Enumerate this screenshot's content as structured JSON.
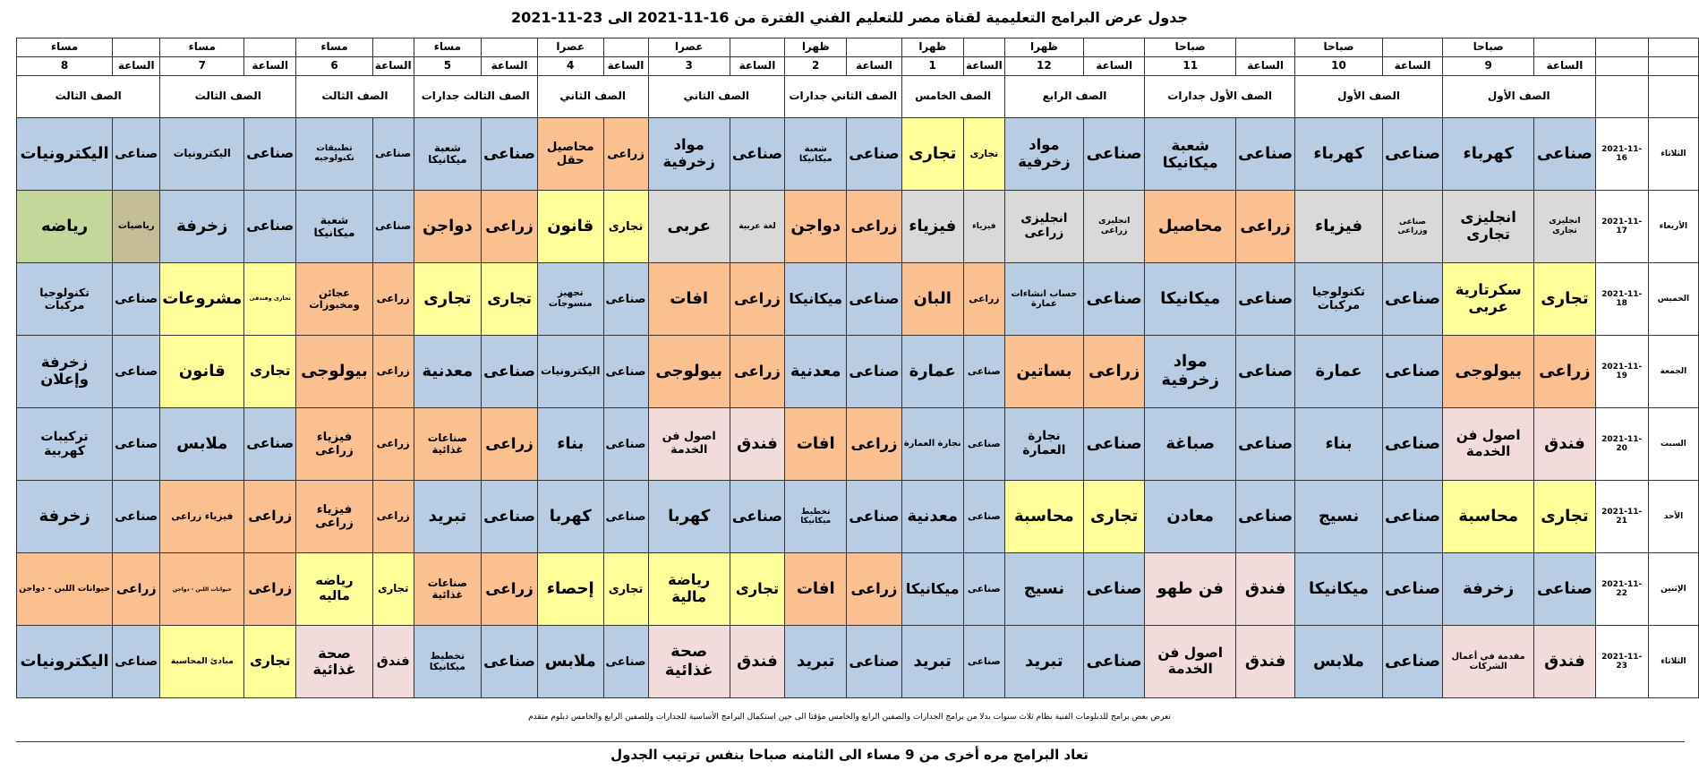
{
  "title": "جدول عرض البرامج التعليمية لقناة مصر للتعليم الفني الفترة من 16-11-2021 الى 23-11-2021",
  "hour_label": "الساعة",
  "slots": [
    {
      "period": "صباحا",
      "hour": 9,
      "grade": "الصف الأول"
    },
    {
      "period": "صباحا",
      "hour": 10,
      "grade": "الصف الأول"
    },
    {
      "period": "صباحا",
      "hour": 11,
      "grade": "الصف الأول جدارات"
    },
    {
      "period": "ظهرا",
      "hour": 12,
      "grade": "الصف الرابع"
    },
    {
      "period": "ظهرا",
      "hour": 1,
      "grade": "الصف الخامس"
    },
    {
      "period": "ظهرا",
      "hour": 2,
      "grade": "الصف الثاني جدارات"
    },
    {
      "period": "عصرا",
      "hour": 3,
      "grade": "الصف الثاني"
    },
    {
      "period": "عصرا",
      "hour": 4,
      "grade": "الصف الثاني"
    },
    {
      "period": "مساء",
      "hour": 5,
      "grade": "الصف الثالث جدارات"
    },
    {
      "period": "مساء",
      "hour": 6,
      "grade": "الصف الثالث"
    },
    {
      "period": "مساء",
      "hour": 7,
      "grade": "الصف الثالث"
    },
    {
      "period": "مساء",
      "hour": 8,
      "grade": "الصف الثالث"
    }
  ],
  "days": [
    {
      "name": "الثلاثاء",
      "date": "2021-11-16",
      "cells": [
        {
          "type": "صناعى",
          "subject": "كهرباء",
          "colors": [
            "#b8cce4",
            "#b8cce4"
          ]
        },
        {
          "type": "صناعى",
          "subject": "كهرباء",
          "colors": [
            "#b8cce4",
            "#b8cce4"
          ]
        },
        {
          "type": "صناعى",
          "subject": "شعبة ميكانيكا",
          "colors": [
            "#b8cce4",
            "#b8cce4"
          ]
        },
        {
          "type": "صناعى",
          "subject": "مواد زخرفية",
          "colors": [
            "#b8cce4",
            "#b8cce4"
          ]
        },
        {
          "type": "تجارى",
          "subject": "تجارى",
          "colors": [
            "#ffff99",
            "#ffff99"
          ]
        },
        {
          "type": "صناعى",
          "subject": "شعبة ميكانيكا",
          "colors": [
            "#b8cce4",
            "#b8cce4"
          ]
        },
        {
          "type": "صناعى",
          "subject": "مواد زخرفية",
          "colors": [
            "#b8cce4",
            "#b8cce4"
          ]
        },
        {
          "type": "زراعى",
          "subject": "محاصيل حقل",
          "colors": [
            "#fac090",
            "#fac090"
          ]
        },
        {
          "type": "صناعى",
          "subject": "شعبة ميكانيكا",
          "colors": [
            "#b8cce4",
            "#b8cce4"
          ]
        },
        {
          "type": "صناعى",
          "subject": "تطبيقات تكنولوجيه",
          "colors": [
            "#b8cce4",
            "#b8cce4"
          ]
        },
        {
          "type": "صناعى",
          "subject": "اليكترونيات",
          "colors": [
            "#b8cce4",
            "#b8cce4"
          ]
        },
        {
          "type": "صناعى",
          "subject": "اليكترونيات",
          "colors": [
            "#b8cce4",
            "#b8cce4"
          ]
        }
      ]
    },
    {
      "name": "الأربعاء",
      "date": "2021-11-17",
      "cells": [
        {
          "type": "انجليزى تجارى",
          "subject": "انجليزى تجارى",
          "colors": [
            "#d9d9d9",
            "#d9d9d9"
          ]
        },
        {
          "type": "صناعى وزراعى",
          "subject": "فيزياء",
          "colors": [
            "#d9d9d9",
            "#d9d9d9"
          ]
        },
        {
          "type": "زراعى",
          "subject": "محاصيل",
          "colors": [
            "#fac090",
            "#fac090"
          ]
        },
        {
          "type": "انجليزى زراعى",
          "subject": "انجليزى زراعى",
          "colors": [
            "#d9d9d9",
            "#d9d9d9"
          ]
        },
        {
          "type": "فيزياء",
          "subject": "فيزياء",
          "colors": [
            "#d9d9d9",
            "#d9d9d9"
          ]
        },
        {
          "type": "زراعى",
          "subject": "دواجن",
          "colors": [
            "#fac090",
            "#fac090"
          ]
        },
        {
          "type": "لغة عربية",
          "subject": "عربى",
          "colors": [
            "#d9d9d9",
            "#d9d9d9"
          ]
        },
        {
          "type": "تجارى",
          "subject": "قانون",
          "colors": [
            "#ffff99",
            "#ffff99"
          ]
        },
        {
          "type": "زراعى",
          "subject": "دواجن",
          "colors": [
            "#fac090",
            "#fac090"
          ]
        },
        {
          "type": "صناعى",
          "subject": "شعبة ميكانيكا",
          "colors": [
            "#b8cce4",
            "#b8cce4"
          ]
        },
        {
          "type": "صناعى",
          "subject": "زخرفة",
          "colors": [
            "#b8cce4",
            "#b8cce4"
          ]
        },
        {
          "type": "رياضيات",
          "subject": "رياضه",
          "colors": [
            "#c4bd97",
            "#c4d79b"
          ]
        }
      ]
    },
    {
      "name": "الخميس",
      "date": "2021-11-18",
      "cells": [
        {
          "type": "تجارى",
          "subject": "سكرتارية عربى",
          "colors": [
            "#ffff99",
            "#ffff99"
          ]
        },
        {
          "type": "صناعى",
          "subject": "تكنولوجيا مركبات",
          "colors": [
            "#b8cce4",
            "#b8cce4"
          ]
        },
        {
          "type": "صناعى",
          "subject": "ميكانيكا",
          "colors": [
            "#b8cce4",
            "#b8cce4"
          ]
        },
        {
          "type": "صناعى",
          "subject": "حساب انشاءات عمارة",
          "colors": [
            "#b8cce4",
            "#b8cce4"
          ]
        },
        {
          "type": "زراعى",
          "subject": "البان",
          "colors": [
            "#fac090",
            "#fac090"
          ]
        },
        {
          "type": "صناعى",
          "subject": "ميكانيكا",
          "colors": [
            "#b8cce4",
            "#b8cce4"
          ]
        },
        {
          "type": "زراعى",
          "subject": "افات",
          "colors": [
            "#fac090",
            "#fac090"
          ]
        },
        {
          "type": "صناعى",
          "subject": "تجهيز منسوجات",
          "colors": [
            "#b8cce4",
            "#b8cce4"
          ]
        },
        {
          "type": "تجارى",
          "subject": "تجارى",
          "colors": [
            "#ffff99",
            "#ffff99"
          ]
        },
        {
          "type": "زراعى",
          "subject": "عجائن ومخبوزات",
          "colors": [
            "#fac090",
            "#fac090"
          ]
        },
        {
          "type": "تجارى وفندقى",
          "subject": "مشروعات",
          "colors": [
            "#ffff99",
            "#ffff99"
          ]
        },
        {
          "type": "صناعى",
          "subject": "تكنولوجيا مركبات",
          "colors": [
            "#b8cce4",
            "#b8cce4"
          ]
        }
      ]
    },
    {
      "name": "الجمعة",
      "date": "2021-11-19",
      "cells": [
        {
          "type": "زراعى",
          "subject": "بيولوجى",
          "colors": [
            "#fac090",
            "#fac090"
          ]
        },
        {
          "type": "صناعى",
          "subject": "عمارة",
          "colors": [
            "#b8cce4",
            "#b8cce4"
          ]
        },
        {
          "type": "صناعى",
          "subject": "مواد زخرفية",
          "colors": [
            "#b8cce4",
            "#b8cce4"
          ]
        },
        {
          "type": "زراعى",
          "subject": "بساتين",
          "colors": [
            "#fac090",
            "#fac090"
          ]
        },
        {
          "type": "صناعى",
          "subject": "عمارة",
          "colors": [
            "#b8cce4",
            "#b8cce4"
          ]
        },
        {
          "type": "صناعى",
          "subject": "معدنية",
          "colors": [
            "#b8cce4",
            "#b8cce4"
          ]
        },
        {
          "type": "زراعى",
          "subject": "بيولوجى",
          "colors": [
            "#fac090",
            "#fac090"
          ]
        },
        {
          "type": "صناعى",
          "subject": "اليكترونيات",
          "colors": [
            "#b8cce4",
            "#b8cce4"
          ]
        },
        {
          "type": "صناعى",
          "subject": "معدنية",
          "colors": [
            "#b8cce4",
            "#b8cce4"
          ]
        },
        {
          "type": "زراعى",
          "subject": "بيولوجى",
          "colors": [
            "#fac090",
            "#fac090"
          ]
        },
        {
          "type": "تجارى",
          "subject": "قانون",
          "colors": [
            "#ffff99",
            "#ffff99"
          ]
        },
        {
          "type": "صناعى",
          "subject": "زخرفة وإعلان",
          "colors": [
            "#b8cce4",
            "#b8cce4"
          ]
        }
      ]
    },
    {
      "name": "السبت",
      "date": "2021-11-20",
      "cells": [
        {
          "type": "فندق",
          "subject": "اصول فن الخدمة",
          "colors": [
            "#f2dcdb",
            "#f2dcdb"
          ]
        },
        {
          "type": "صناعى",
          "subject": "بناء",
          "colors": [
            "#b8cce4",
            "#b8cce4"
          ]
        },
        {
          "type": "صناعى",
          "subject": "صباغة",
          "colors": [
            "#b8cce4",
            "#b8cce4"
          ]
        },
        {
          "type": "صناعى",
          "subject": "نجارة العمارة",
          "colors": [
            "#b8cce4",
            "#b8cce4"
          ]
        },
        {
          "type": "صناعى",
          "subject": "نجارة العمارة",
          "colors": [
            "#b8cce4",
            "#b8cce4"
          ]
        },
        {
          "type": "زراعى",
          "subject": "افات",
          "colors": [
            "#fac090",
            "#fac090"
          ]
        },
        {
          "type": "فندق",
          "subject": "اصول فن الخدمة",
          "colors": [
            "#f2dcdb",
            "#f2dcdb"
          ]
        },
        {
          "type": "صناعى",
          "subject": "بناء",
          "colors": [
            "#b8cce4",
            "#b8cce4"
          ]
        },
        {
          "type": "زراعى",
          "subject": "صناعات غذائية",
          "colors": [
            "#fac090",
            "#fac090"
          ]
        },
        {
          "type": "زراعى",
          "subject": "فيزياء زراعى",
          "colors": [
            "#fac090",
            "#fac090"
          ]
        },
        {
          "type": "صناعى",
          "subject": "ملابس",
          "colors": [
            "#b8cce4",
            "#b8cce4"
          ]
        },
        {
          "type": "صناعى",
          "subject": "تركيبات كهربية",
          "colors": [
            "#b8cce4",
            "#b8cce4"
          ]
        }
      ]
    },
    {
      "name": "الأحد",
      "date": "2021-11-21",
      "cells": [
        {
          "type": "تجارى",
          "subject": "محاسبة",
          "colors": [
            "#ffff99",
            "#ffff99"
          ]
        },
        {
          "type": "صناعى",
          "subject": "نسيج",
          "colors": [
            "#b8cce4",
            "#b8cce4"
          ]
        },
        {
          "type": "صناعى",
          "subject": "معادن",
          "colors": [
            "#b8cce4",
            "#b8cce4"
          ]
        },
        {
          "type": "تجارى",
          "subject": "محاسبة",
          "colors": [
            "#ffff99",
            "#ffff99"
          ]
        },
        {
          "type": "صناعى",
          "subject": "معدنية",
          "colors": [
            "#b8cce4",
            "#b8cce4"
          ]
        },
        {
          "type": "صناعى",
          "subject": "تخطيط ميكانيكا",
          "colors": [
            "#b8cce4",
            "#b8cce4"
          ]
        },
        {
          "type": "صناعى",
          "subject": "كهربا",
          "colors": [
            "#b8cce4",
            "#b8cce4"
          ]
        },
        {
          "type": "صناعى",
          "subject": "كهربا",
          "colors": [
            "#b8cce4",
            "#b8cce4"
          ]
        },
        {
          "type": "صناعى",
          "subject": "تبريد",
          "colors": [
            "#b8cce4",
            "#b8cce4"
          ]
        },
        {
          "type": "زراعى",
          "subject": "فيزياء زراعى",
          "colors": [
            "#fac090",
            "#fac090"
          ]
        },
        {
          "type": "زراعى",
          "subject": "فيزياء زراعى",
          "colors": [
            "#fac090",
            "#fac090"
          ]
        },
        {
          "type": "صناعى",
          "subject": "زخرفة",
          "colors": [
            "#b8cce4",
            "#b8cce4"
          ]
        }
      ]
    },
    {
      "name": "الإثنين",
      "date": "2021-11-22",
      "cells": [
        {
          "type": "صناعى",
          "subject": "زخرفة",
          "colors": [
            "#b8cce4",
            "#b8cce4"
          ]
        },
        {
          "type": "صناعى",
          "subject": "ميكانيكا",
          "colors": [
            "#b8cce4",
            "#b8cce4"
          ]
        },
        {
          "type": "فندق",
          "subject": "فن طهو",
          "colors": [
            "#f2dcdb",
            "#f2dcdb"
          ]
        },
        {
          "type": "صناعى",
          "subject": "نسيج",
          "colors": [
            "#b8cce4",
            "#b8cce4"
          ]
        },
        {
          "type": "صناعى",
          "subject": "ميكانيكا",
          "colors": [
            "#b8cce4",
            "#b8cce4"
          ]
        },
        {
          "type": "زراعى",
          "subject": "افات",
          "colors": [
            "#fac090",
            "#fac090"
          ]
        },
        {
          "type": "تجارى",
          "subject": "رياضة مالية",
          "colors": [
            "#ffff99",
            "#ffff99"
          ]
        },
        {
          "type": "تجارى",
          "subject": "إحصاء",
          "colors": [
            "#ffff99",
            "#ffff99"
          ]
        },
        {
          "type": "زراعى",
          "subject": "صناعات غذائية",
          "colors": [
            "#fac090",
            "#fac090"
          ]
        },
        {
          "type": "تجارى",
          "subject": "رياضه ماليه",
          "colors": [
            "#ffff99",
            "#ffff99"
          ]
        },
        {
          "type": "زراعى",
          "subject": "حيوانات اللبن - دواجن",
          "colors": [
            "#fac090",
            "#fac090"
          ]
        },
        {
          "type": "زراعى",
          "subject": "حيوانات اللبن - دواجن",
          "colors": [
            "#fac090",
            "#fac090"
          ]
        }
      ]
    },
    {
      "name": "الثلاثاء",
      "date": "2021-11-23",
      "cells": [
        {
          "type": "فندق",
          "subject": "مقدمة في أعمال الشركات",
          "colors": [
            "#f2dcdb",
            "#f2dcdb"
          ]
        },
        {
          "type": "صناعى",
          "subject": "ملابس",
          "colors": [
            "#b8cce4",
            "#b8cce4"
          ]
        },
        {
          "type": "فندق",
          "subject": "اصول فن الخدمة",
          "colors": [
            "#f2dcdb",
            "#f2dcdb"
          ]
        },
        {
          "type": "صناعى",
          "subject": "تبريد",
          "colors": [
            "#b8cce4",
            "#b8cce4"
          ]
        },
        {
          "type": "صناعى",
          "subject": "تبريد",
          "colors": [
            "#b8cce4",
            "#b8cce4"
          ]
        },
        {
          "type": "صناعى",
          "subject": "تبريد",
          "colors": [
            "#b8cce4",
            "#b8cce4"
          ]
        },
        {
          "type": "فندق",
          "subject": "صحة غذائية",
          "colors": [
            "#f2dcdb",
            "#f2dcdb"
          ]
        },
        {
          "type": "صناعى",
          "subject": "ملابس",
          "colors": [
            "#b8cce4",
            "#b8cce4"
          ]
        },
        {
          "type": "صناعى",
          "subject": "تخطيط ميكانيكا",
          "colors": [
            "#b8cce4",
            "#b8cce4"
          ]
        },
        {
          "type": "فندق",
          "subject": "صحة غذائية",
          "colors": [
            "#f2dcdb",
            "#f2dcdb"
          ]
        },
        {
          "type": "تجارى",
          "subject": "مبادئ المحاسبة",
          "colors": [
            "#ffff99",
            "#ffff99"
          ]
        },
        {
          "type": "صناعى",
          "subject": "اليكترونيات",
          "colors": [
            "#b8cce4",
            "#b8cce4"
          ]
        }
      ]
    }
  ],
  "footnote": "تعرض بعض برامج للدبلومات الفنية نظام ثلاث سنوات بدلا من برامج الجدارات والصفين الرابع والخامس مؤقتا الى حين استكمال البرامج الأساسية للجدارات وللصفين الرابع والخامس دبلوم متقدم",
  "footer": "تعاد البرامج مره أخرى من 9 مساء الى الثامنه صباحا بنفس ترتيب الجدول"
}
